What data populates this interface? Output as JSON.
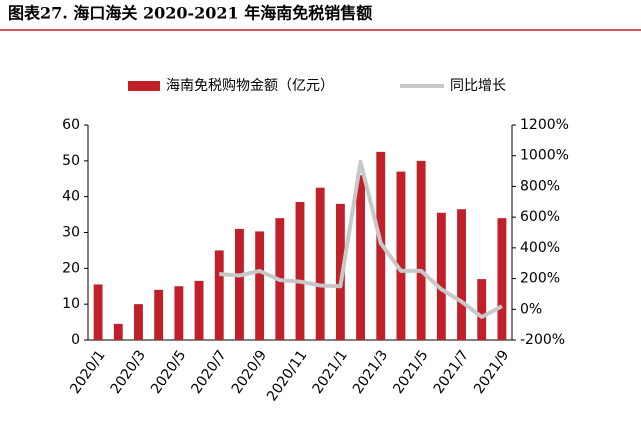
{
  "chart_data": {
    "type": "bar",
    "title": "图表27. 海口海关 2020-2021 年海南免税销售额",
    "categories": [
      "2020/1",
      null,
      "2020/3",
      null,
      "2020/5",
      null,
      "2020/7",
      null,
      "2020/9",
      null,
      "2020/11",
      null,
      "2021/1",
      null,
      "2021/3",
      null,
      "2021/5",
      null,
      "2021/7",
      null,
      "2021/9"
    ],
    "series": [
      {
        "name": "海南免税购物金额（亿元）",
        "color": "#c0202a",
        "type": "bar",
        "values": [
          15.5,
          4.5,
          10,
          14,
          15,
          16.5,
          25,
          31,
          30.3,
          34,
          38.5,
          42.5,
          38,
          46,
          52.5,
          47,
          50,
          35.5,
          36.5,
          17,
          34
        ]
      },
      {
        "name": "同比增长",
        "color": "#c8c8c8",
        "type": "line",
        "axis": "y2",
        "values": [
          null,
          null,
          null,
          null,
          null,
          null,
          230,
          220,
          250,
          190,
          180,
          155,
          150,
          960,
          430,
          250,
          250,
          130,
          50,
          -50,
          20
        ]
      }
    ],
    "ylim": [
      0,
      60
    ],
    "yticks": [
      0,
      10,
      20,
      30,
      40,
      50,
      60
    ],
    "y2lim": [
      -200,
      1200
    ],
    "y2ticks": [
      {
        "value": -200,
        "label": "-200%"
      },
      {
        "value": 0,
        "label": "0%"
      },
      {
        "value": 200,
        "label": "200%"
      },
      {
        "value": 400,
        "label": "400%"
      },
      {
        "value": 600,
        "label": "600%"
      },
      {
        "value": 800,
        "label": "800%"
      },
      {
        "value": 1000,
        "label": "1000%"
      },
      {
        "value": 1200,
        "label": "1200%"
      }
    ],
    "legend": "top"
  }
}
